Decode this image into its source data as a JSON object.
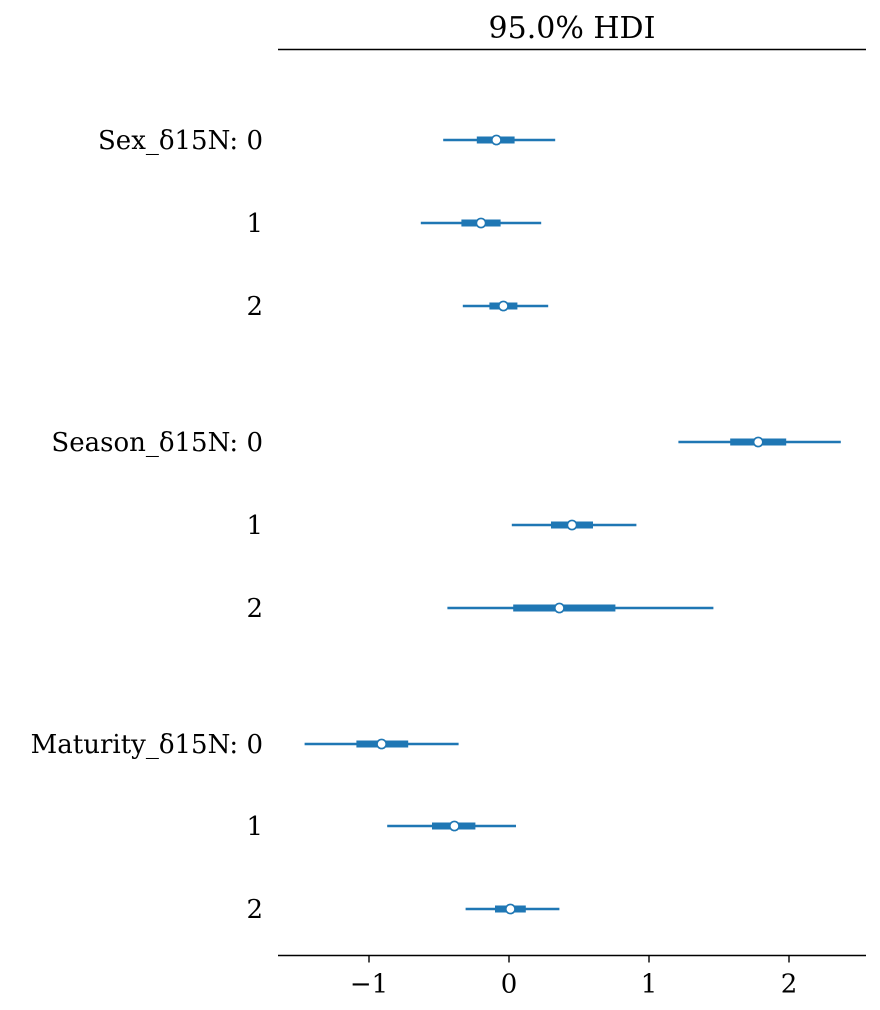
{
  "chart_data": {
    "type": "forest",
    "title": "95.0% HDI",
    "xlim": [
      -1.65,
      2.55
    ],
    "xticks": [
      -1,
      0,
      1,
      2
    ],
    "xtick_labels": [
      "−1",
      "0",
      "1",
      "2"
    ],
    "grid": false,
    "colors": {
      "series": "#1f77b4",
      "point_fill": "#ffffff",
      "axis": "#000000"
    },
    "groups": [
      {
        "name": "Sex_δ15N",
        "rows": [
          {
            "label": "0",
            "mean": -0.09,
            "hdi_low": -0.47,
            "hdi_high": 0.33,
            "iqr_low": -0.23,
            "iqr_high": 0.04
          },
          {
            "label": "1",
            "mean": -0.2,
            "hdi_low": -0.63,
            "hdi_high": 0.23,
            "iqr_low": -0.34,
            "iqr_high": -0.06
          },
          {
            "label": "2",
            "mean": -0.04,
            "hdi_low": -0.33,
            "hdi_high": 0.28,
            "iqr_low": -0.14,
            "iqr_high": 0.06
          }
        ]
      },
      {
        "name": "Season_δ15N",
        "rows": [
          {
            "label": "0",
            "mean": 1.78,
            "hdi_low": 1.21,
            "hdi_high": 2.37,
            "iqr_low": 1.58,
            "iqr_high": 1.98
          },
          {
            "label": "1",
            "mean": 0.45,
            "hdi_low": 0.02,
            "hdi_high": 0.91,
            "iqr_low": 0.3,
            "iqr_high": 0.6
          },
          {
            "label": "2",
            "mean": 0.36,
            "hdi_low": -0.44,
            "hdi_high": 1.46,
            "iqr_low": 0.03,
            "iqr_high": 0.76
          }
        ]
      },
      {
        "name": "Maturity_δ15N",
        "rows": [
          {
            "label": "0",
            "mean": -0.91,
            "hdi_low": -1.46,
            "hdi_high": -0.36,
            "iqr_low": -1.09,
            "iqr_high": -0.72
          },
          {
            "label": "1",
            "mean": -0.39,
            "hdi_low": -0.87,
            "hdi_high": 0.05,
            "iqr_low": -0.55,
            "iqr_high": -0.24
          },
          {
            "label": "2",
            "mean": 0.01,
            "hdi_low": -0.31,
            "hdi_high": 0.36,
            "iqr_low": -0.1,
            "iqr_high": 0.12
          }
        ]
      }
    ]
  }
}
